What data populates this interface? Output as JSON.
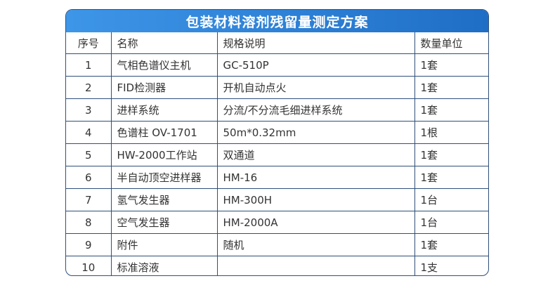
{
  "title": "包装材料溶剂残留量测定方案",
  "headers": [
    "序号",
    "名称",
    "规格说明",
    "数量单位"
  ],
  "rows": [
    [
      "1",
      "气相色谱仪主机",
      "GC-510P",
      "1套"
    ],
    [
      "2",
      "FID检测器",
      "开机自动点火",
      "1套"
    ],
    [
      "3",
      "进样系统",
      "分流/不分流毛细进样系统",
      "1套"
    ],
    [
      "4",
      "色谱柱 OV-1701",
      "50m*0.32mm",
      "1根"
    ],
    [
      "5",
      "HW-2000工作站",
      "双通道",
      "1套"
    ],
    [
      "6",
      "半自动顶空进样器",
      "HM-16",
      "1套"
    ],
    [
      "7",
      "氢气发生器",
      "HM-300H",
      "1台"
    ],
    [
      "8",
      "空气发生器",
      "HM-2000A",
      "1台"
    ],
    [
      "9",
      "附件",
      "随机",
      "1套"
    ],
    [
      "10",
      "标准溶液",
      "",
      "1支"
    ]
  ],
  "colors": {
    "header_start": "#3e96e8",
    "header_end": "#1f6ec6",
    "border": "#2e4f7a"
  }
}
